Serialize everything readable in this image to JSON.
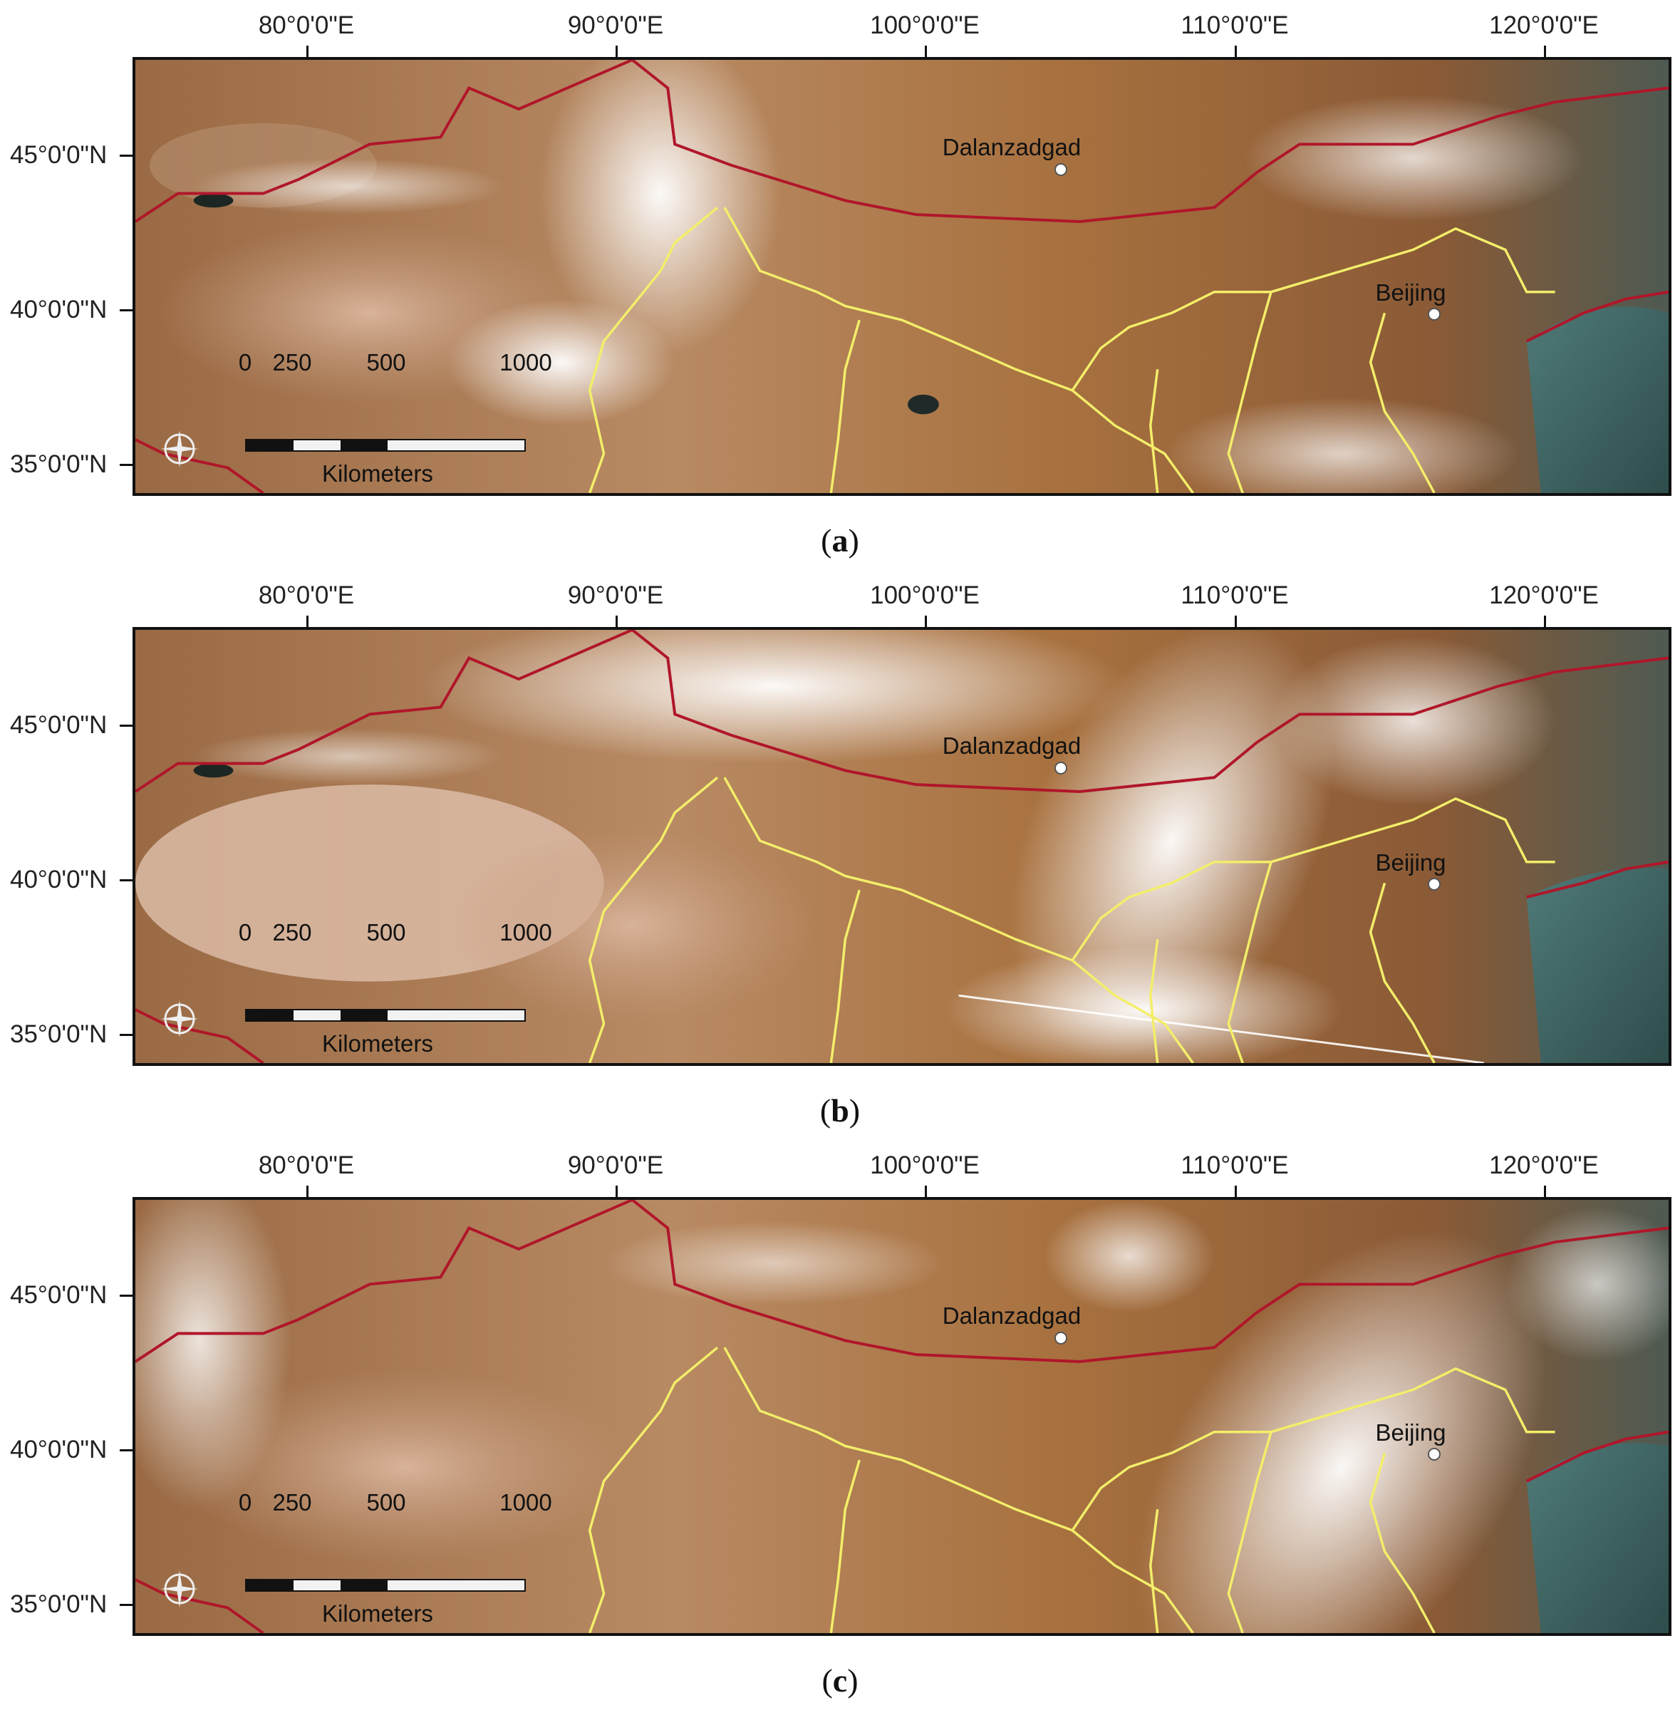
{
  "lon_ticks": [
    "80°0'0\"E",
    "90°0'0\"E",
    "100°0'0\"E",
    "110°0'0\"E",
    "120°0'0\"E"
  ],
  "lat_ticks": [
    "45°0'0\"N",
    "40°0'0\"N",
    "35°0'0\"N"
  ],
  "cities": {
    "dalanzadgad": "Dalanzadgad",
    "beijing": "Beijing"
  },
  "scale": {
    "values": [
      "0",
      "250",
      "500",
      "1000"
    ],
    "unit": "Kilometers"
  },
  "colors": {
    "national_border": "#b0162a",
    "province_border": "#f3ee6a",
    "frame": "#111111"
  },
  "icons": {
    "north_arrow": "compass-north-arrow-icon"
  },
  "panels": [
    {
      "caption_open": "(",
      "caption_letter": "a",
      "caption_close": ")"
    },
    {
      "caption_open": "(",
      "caption_letter": "b",
      "caption_close": ")"
    },
    {
      "caption_open": "(",
      "caption_letter": "c",
      "caption_close": ")"
    }
  ]
}
